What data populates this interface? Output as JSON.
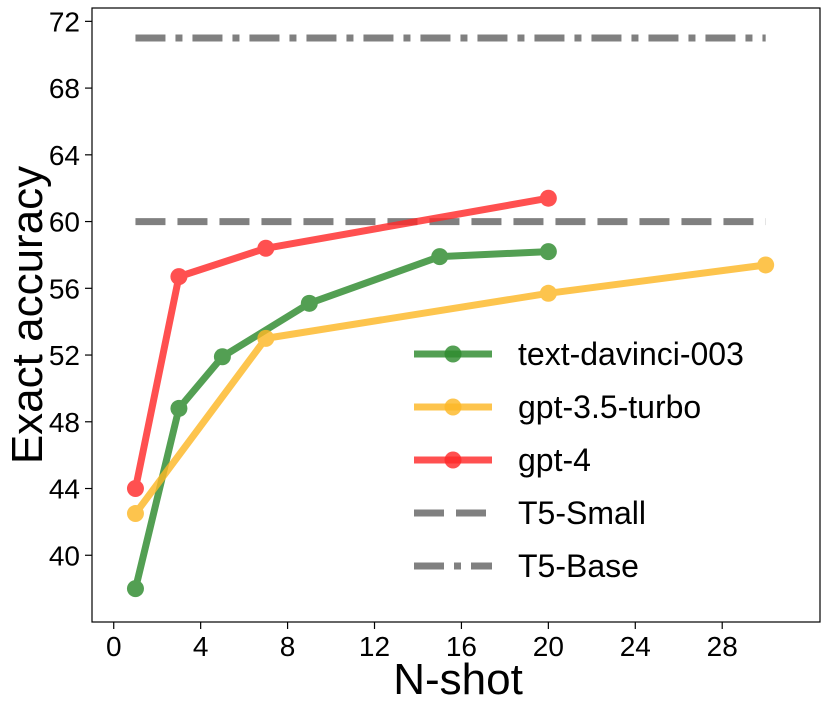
{
  "chart_data": {
    "type": "line",
    "title": "",
    "xlabel": "N-shot",
    "ylabel": "Exact accuracy",
    "xlim": [
      -1,
      32.5
    ],
    "ylim": [
      36,
      72.8
    ],
    "xticks": [
      0,
      4,
      8,
      12,
      16,
      20,
      24,
      28
    ],
    "yticks": [
      40,
      44,
      48,
      52,
      56,
      60,
      64,
      68,
      72
    ],
    "grid": false,
    "legend_position": "lower-right",
    "series": [
      {
        "name": "text-davinci-003",
        "color": "#2e8b2e",
        "style": "solid-marker",
        "x": [
          1,
          3,
          5,
          9,
          15,
          20
        ],
        "y": [
          38.0,
          48.8,
          51.9,
          55.1,
          57.9,
          58.2
        ]
      },
      {
        "name": "gpt-3.5-turbo",
        "color": "#fdb827",
        "style": "solid-marker",
        "x": [
          1,
          7,
          20,
          30
        ],
        "y": [
          42.5,
          53.0,
          55.7,
          57.4
        ]
      },
      {
        "name": "gpt-4",
        "color": "#ff2a2a",
        "style": "solid-marker",
        "x": [
          1,
          3,
          7,
          20
        ],
        "y": [
          44.0,
          56.7,
          58.4,
          61.4
        ]
      },
      {
        "name": "T5-Small",
        "color": "#808080",
        "style": "dashed",
        "x": [
          1,
          30
        ],
        "y": [
          60.0,
          60.0
        ]
      },
      {
        "name": "T5-Base",
        "color": "#808080",
        "style": "dashdot",
        "x": [
          1,
          30
        ],
        "y": [
          71.0,
          71.0
        ]
      }
    ]
  }
}
